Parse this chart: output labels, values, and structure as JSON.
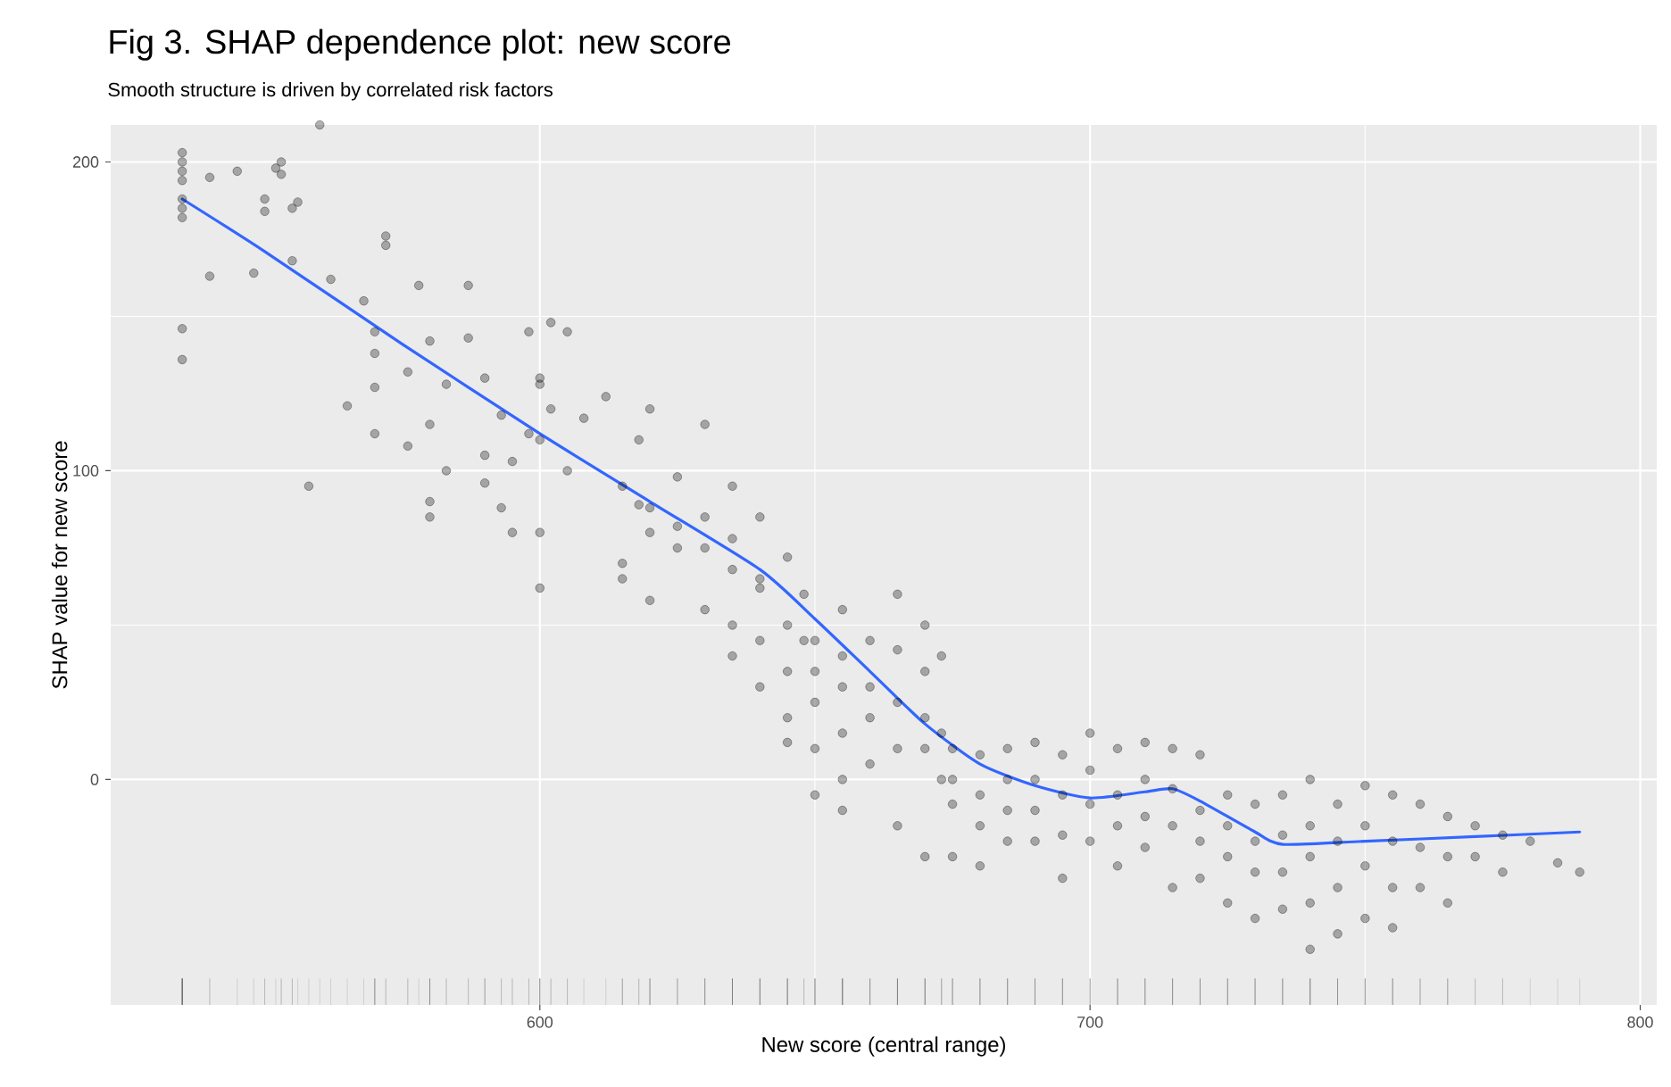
{
  "chart_data": {
    "type": "scatter",
    "title": "Fig 3. SHAP dependence plot: new score",
    "subtitle": "Smooth structure is driven by correlated risk factors",
    "xlabel": "New score (central range)",
    "ylabel": "SHAP value for new score",
    "xlim": [
      522,
      803
    ],
    "ylim": [
      -73,
      212
    ],
    "xticks": [
      600,
      700,
      800
    ],
    "yticks": [
      0,
      100,
      200
    ],
    "grid": true,
    "series": [
      {
        "color": "#000000",
        "marker": "circle",
        "x": [
          535,
          535,
          535,
          535,
          535,
          535,
          535,
          535,
          535,
          540,
          540,
          545,
          548,
          550,
          550,
          552,
          553,
          553,
          556,
          555,
          555,
          558,
          560,
          562,
          565,
          568,
          570,
          570,
          570,
          570,
          572,
          572,
          576,
          576,
          578,
          580,
          580,
          580,
          580,
          583,
          583,
          587,
          587,
          590,
          590,
          590,
          593,
          593,
          595,
          595,
          598,
          598,
          600,
          600,
          600,
          600,
          600,
          602,
          602,
          605,
          605,
          608,
          612,
          615,
          615,
          615,
          618,
          618,
          620,
          620,
          620,
          620,
          625,
          625,
          625,
          630,
          630,
          630,
          630,
          635,
          635,
          635,
          635,
          635,
          640,
          640,
          640,
          640,
          640,
          645,
          645,
          645,
          645,
          645,
          648,
          648,
          650,
          650,
          650,
          650,
          650,
          655,
          655,
          655,
          655,
          655,
          655,
          660,
          660,
          660,
          660,
          665,
          665,
          665,
          665,
          665,
          670,
          670,
          670,
          670,
          670,
          673,
          673,
          673,
          675,
          675,
          675,
          675,
          680,
          680,
          680,
          680,
          685,
          685,
          685,
          685,
          690,
          690,
          690,
          690,
          695,
          695,
          695,
          695,
          700,
          700,
          700,
          700,
          705,
          705,
          705,
          705,
          710,
          710,
          710,
          710,
          715,
          715,
          715,
          715,
          720,
          720,
          720,
          720,
          725,
          725,
          725,
          725,
          730,
          730,
          730,
          730,
          735,
          735,
          735,
          735,
          740,
          740,
          740,
          740,
          740,
          745,
          745,
          745,
          745,
          750,
          750,
          750,
          750,
          755,
          755,
          755,
          755,
          760,
          760,
          760,
          765,
          765,
          765,
          770,
          770,
          775,
          775,
          780,
          785,
          789
        ],
        "values": [
          203,
          200,
          197,
          194,
          188,
          185,
          182,
          146,
          136,
          195,
          163,
          197,
          164,
          188,
          184,
          198,
          200,
          196,
          187,
          185,
          168,
          95,
          212,
          162,
          121,
          155,
          145,
          112,
          127,
          138,
          176,
          173,
          108,
          132,
          160,
          142,
          90,
          85,
          115,
          100,
          128,
          160,
          143,
          130,
          105,
          96,
          118,
          88,
          103,
          80,
          112,
          145,
          130,
          128,
          110,
          80,
          62,
          148,
          120,
          145,
          100,
          117,
          124,
          70,
          95,
          65,
          110,
          89,
          120,
          88,
          58,
          80,
          98,
          82,
          75,
          115,
          85,
          75,
          55,
          95,
          78,
          68,
          50,
          40,
          85,
          65,
          45,
          30,
          62,
          72,
          50,
          35,
          20,
          12,
          60,
          45,
          45,
          35,
          25,
          10,
          -5,
          55,
          40,
          30,
          15,
          0,
          -10,
          45,
          30,
          20,
          5,
          60,
          42,
          25,
          10,
          -15,
          50,
          35,
          20,
          10,
          -25,
          40,
          15,
          0,
          10,
          0,
          -8,
          -25,
          8,
          -5,
          -15,
          -28,
          10,
          0,
          -10,
          -20,
          12,
          0,
          -10,
          -20,
          8,
          -5,
          -18,
          -32,
          15,
          3,
          -8,
          -20,
          10,
          -5,
          -15,
          -28,
          12,
          0,
          -12,
          -22,
          10,
          -3,
          -15,
          -35,
          8,
          -10,
          -20,
          -32,
          -5,
          -15,
          -25,
          -40,
          -8,
          -20,
          -30,
          -45,
          -5,
          -18,
          -30,
          -42,
          0,
          -15,
          -25,
          -40,
          -55,
          -8,
          -20,
          -35,
          -50,
          -2,
          -15,
          -28,
          -45,
          -5,
          -20,
          -35,
          -48,
          -8,
          -22,
          -35,
          -12,
          -25,
          -40,
          -15,
          -25,
          -18,
          -30,
          -20,
          -27,
          -30
        ]
      },
      {
        "type": "line",
        "color": "#3366ff",
        "marker": "none",
        "x": [
          535,
          550,
          575,
          600,
          620,
          640,
          650,
          660,
          670,
          680,
          690,
          700,
          710,
          715,
          720,
          730,
          735,
          750,
          770,
          789
        ],
        "values": [
          188,
          171,
          141,
          112,
          90,
          68,
          52,
          35,
          18,
          5,
          -2,
          -6,
          -4,
          -3,
          -7,
          -17,
          -21,
          -20,
          -18.5,
          -17
        ]
      }
    ]
  }
}
